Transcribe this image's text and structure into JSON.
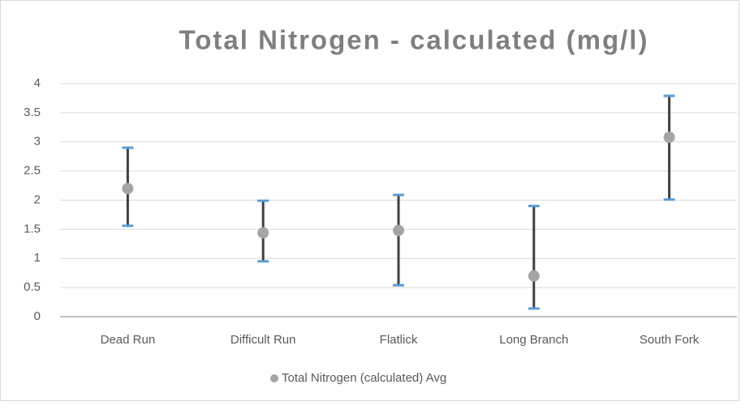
{
  "chart_data": {
    "type": "errorbar",
    "title": "Total Nitrogen - calculated (mg/l)",
    "categories": [
      "Dead Run",
      "Difficult Run",
      "Flatlick",
      "Long Branch",
      "South Fork"
    ],
    "series": [
      {
        "name": "Total Nitrogen (calculated) Avg",
        "color": "#a5a5a5",
        "values": [
          2.2,
          1.44,
          1.48,
          0.7,
          3.08
        ],
        "low": [
          1.56,
          0.95,
          0.54,
          0.14,
          2.01
        ],
        "high": [
          2.9,
          1.99,
          2.09,
          1.9,
          3.79
        ]
      }
    ],
    "bar_color": "#404040",
    "cap_color": "#5b9bd5",
    "ylim": [
      0,
      4
    ],
    "yticks": [
      0,
      0.5,
      1,
      1.5,
      2,
      2.5,
      3,
      3.5,
      4
    ],
    "grid": true,
    "legend": "bottom"
  }
}
